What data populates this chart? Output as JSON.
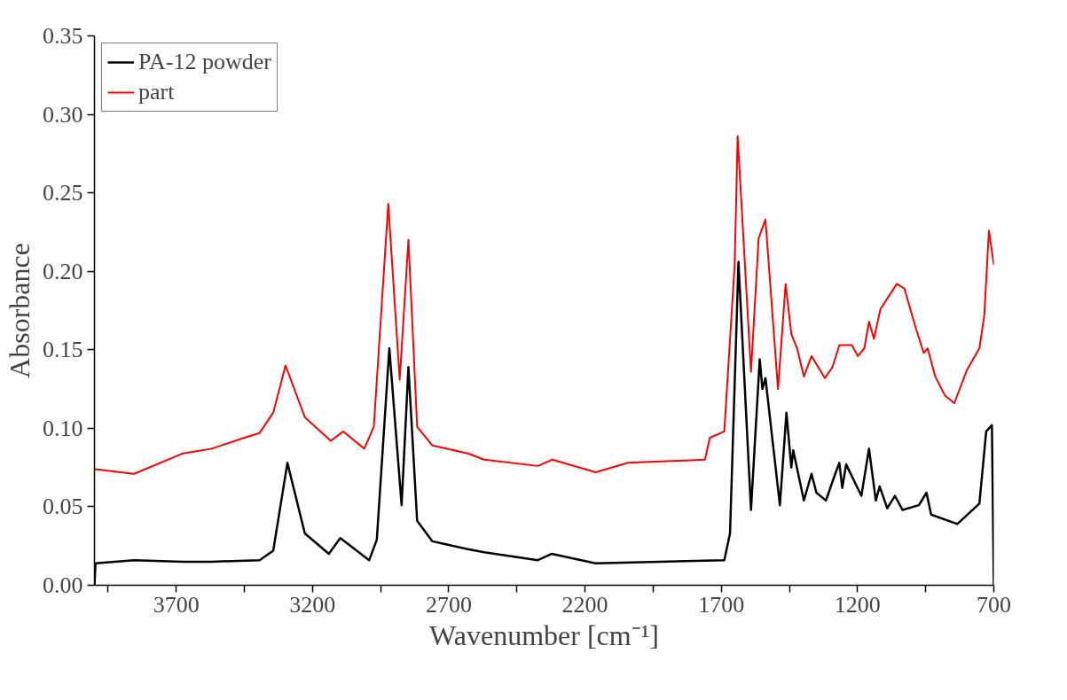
{
  "chart_data": {
    "type": "line",
    "xlabel": "Wavenumber [cm⁻¹]",
    "ylabel": "Absorbance",
    "xlim": [
      4000,
      700
    ],
    "ylim": [
      0,
      0.35
    ],
    "xticks": [
      {
        "value": 3950,
        "label": null
      },
      3700,
      {
        "value": 3450,
        "label": null
      },
      3200,
      {
        "value": 2950,
        "label": null
      },
      2700,
      {
        "value": 2450,
        "label": null
      },
      2200,
      {
        "value": 1950,
        "label": null
      },
      1700,
      {
        "value": 1450,
        "label": null
      },
      1200,
      {
        "value": 950,
        "label": null
      },
      700
    ],
    "yticks": [
      {
        "value": 0,
        "label": "0.00"
      },
      {
        "value": 0.05,
        "label": "0.05"
      },
      {
        "value": 0.1,
        "label": "0.10"
      },
      {
        "value": 0.15,
        "label": "0.15"
      },
      {
        "value": 0.2,
        "label": "0.20"
      },
      {
        "value": 0.25,
        "label": "0.25"
      },
      {
        "value": 0.3,
        "label": "0.30"
      },
      {
        "value": 0.35,
        "label": "0.35"
      }
    ],
    "grid": false,
    "legend": "top left",
    "marker": "none",
    "line_style": "solid",
    "series": [
      {
        "name": "PA-12 powder",
        "color": "#000000",
        "x": [
          4000,
          3996,
          3855,
          3675,
          3570,
          3394,
          3344,
          3292,
          3228,
          3140,
          3098,
          2992,
          2964,
          2918,
          2873,
          2848,
          2816,
          2760,
          2630,
          2570,
          2373,
          2323,
          2161,
          1925,
          1689,
          1668,
          1637,
          1591,
          1559,
          1549,
          1538,
          1485,
          1461,
          1443,
          1436,
          1397,
          1369,
          1351,
          1316,
          1284,
          1267,
          1256,
          1242,
          1186,
          1158,
          1133,
          1119,
          1091,
          1063,
          1035,
          975,
          947,
          930,
          834,
          753,
          728,
          707,
          700
        ],
        "values": [
          0.0,
          0.014,
          0.016,
          0.015,
          0.015,
          0.016,
          0.022,
          0.078,
          0.033,
          0.02,
          0.03,
          0.016,
          0.029,
          0.151,
          0.051,
          0.139,
          0.041,
          0.028,
          0.023,
          0.021,
          0.016,
          0.02,
          0.014,
          0.015,
          0.016,
          0.033,
          0.206,
          0.048,
          0.144,
          0.125,
          0.132,
          0.051,
          0.11,
          0.075,
          0.086,
          0.054,
          0.071,
          0.059,
          0.054,
          0.07,
          0.078,
          0.062,
          0.077,
          0.057,
          0.087,
          0.054,
          0.063,
          0.049,
          0.057,
          0.048,
          0.051,
          0.059,
          0.045,
          0.039,
          0.052,
          0.098,
          0.102,
          0.0
        ]
      },
      {
        "name": "part",
        "color": "#ff0000",
        "x": [
          4000,
          3855,
          3675,
          3570,
          3450,
          3394,
          3344,
          3299,
          3228,
          3133,
          3087,
          3010,
          2975,
          2922,
          2880,
          2848,
          2816,
          2760,
          2630,
          2570,
          2373,
          2320,
          2161,
          2042,
          1760,
          1742,
          1689,
          1651,
          1640,
          1591,
          1563,
          1538,
          1492,
          1464,
          1443,
          1422,
          1397,
          1369,
          1320,
          1292,
          1267,
          1221,
          1199,
          1175,
          1158,
          1140,
          1116,
          1056,
          1028,
          985,
          957,
          943,
          915,
          880,
          845,
          799,
          753,
          735,
          718,
          700
        ],
        "values": [
          0.074,
          0.071,
          0.084,
          0.087,
          0.094,
          0.097,
          0.11,
          0.14,
          0.107,
          0.092,
          0.098,
          0.087,
          0.101,
          0.243,
          0.131,
          0.22,
          0.101,
          0.089,
          0.084,
          0.08,
          0.076,
          0.08,
          0.072,
          0.078,
          0.08,
          0.094,
          0.098,
          0.204,
          0.286,
          0.136,
          0.221,
          0.233,
          0.125,
          0.192,
          0.16,
          0.151,
          0.133,
          0.146,
          0.132,
          0.139,
          0.153,
          0.153,
          0.146,
          0.151,
          0.168,
          0.157,
          0.176,
          0.192,
          0.189,
          0.163,
          0.148,
          0.151,
          0.133,
          0.121,
          0.116,
          0.137,
          0.151,
          0.172,
          0.226,
          0.204
        ]
      }
    ]
  }
}
